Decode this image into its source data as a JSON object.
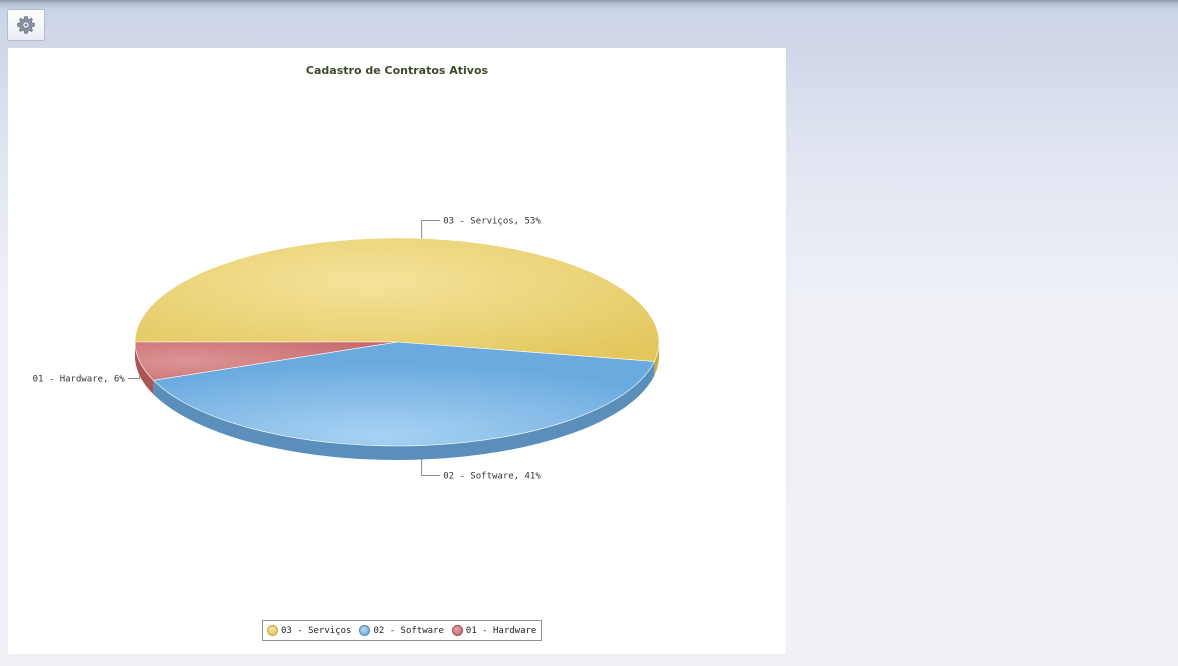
{
  "toolbar": {
    "settings_icon": "gear-icon"
  },
  "chart_data": {
    "type": "pie",
    "title": "Cadastro de Contratos Ativos",
    "slices": [
      {
        "label": "03 - Serviços",
        "value": 53,
        "data_label": "03 - Serviços, 53%",
        "color": "#e8cf6a",
        "side": "#c9ae45"
      },
      {
        "label": "02 - Software",
        "value": 41,
        "data_label": "02 - Software, 41%",
        "color": "#7fb6e3",
        "side": "#5a8fbc"
      },
      {
        "label": "01 - Hardware",
        "value": 6,
        "data_label": "01 - Hardware, 6%",
        "color": "#d0797a",
        "side": "#a85657"
      }
    ],
    "legend": {
      "placement": "bottom-center",
      "items": [
        "03 - Serviços",
        "02 - Software",
        "01 - Hardware"
      ]
    },
    "three_d": true
  }
}
